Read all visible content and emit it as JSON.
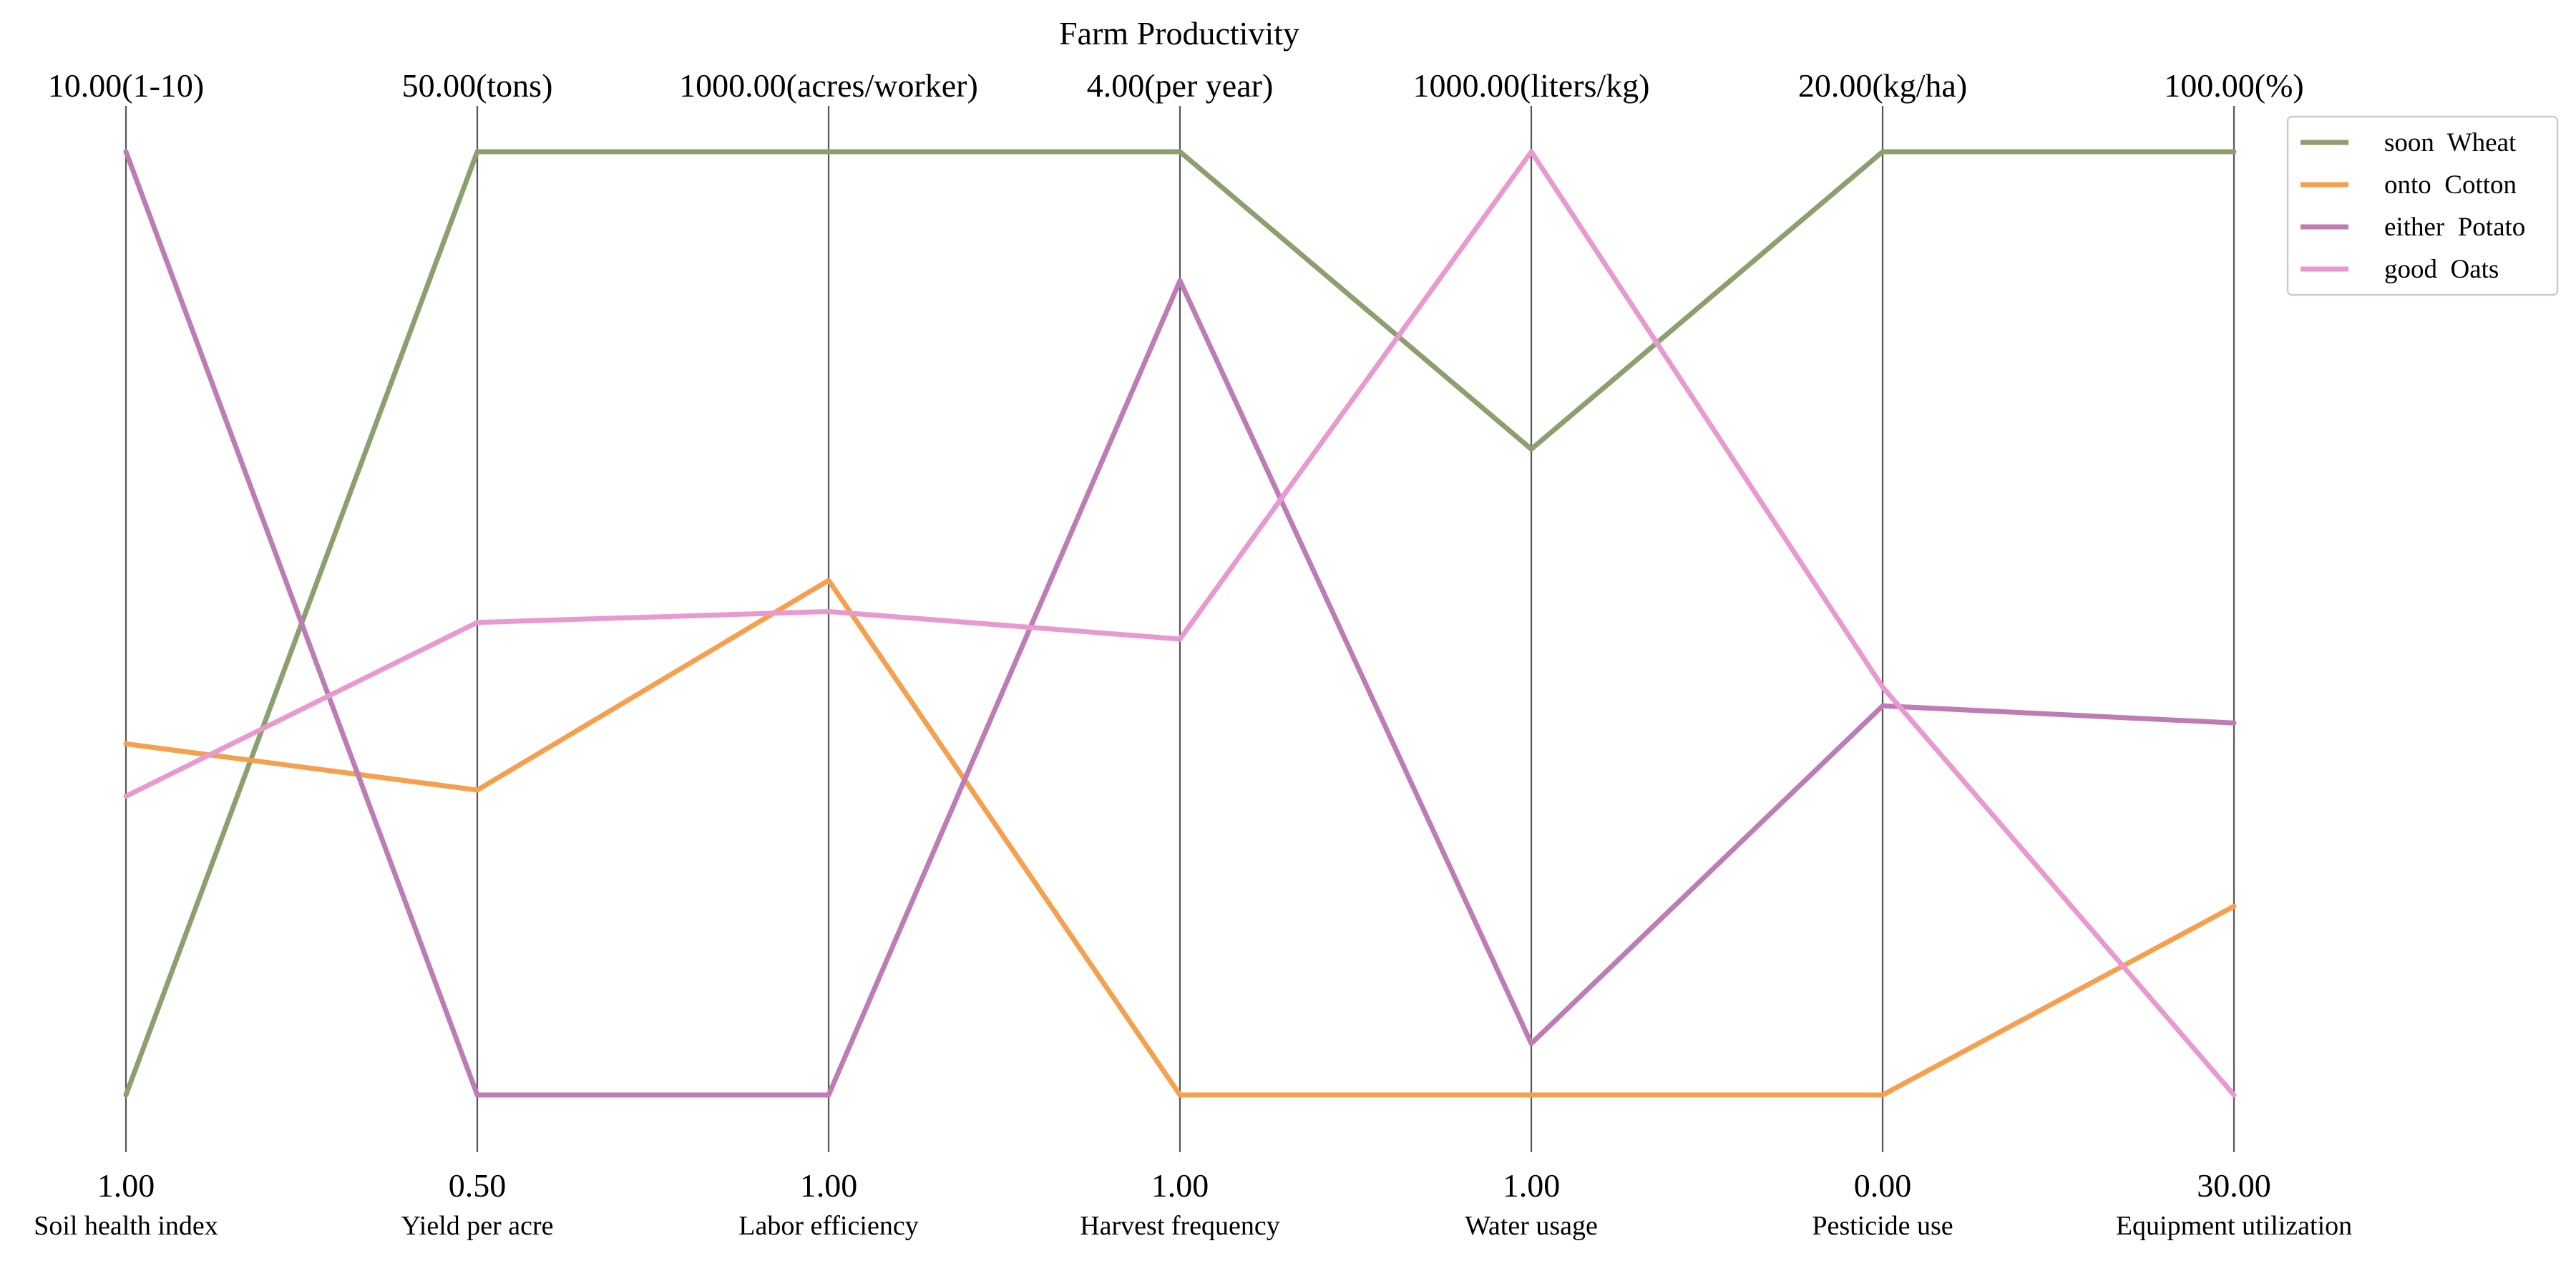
{
  "chart_data": {
    "type": "parallel_coordinates",
    "title": "Farm Productivity",
    "axes": [
      {
        "name": "Soil health index",
        "min_label": "1.00",
        "max_label": "10.00(1-10)",
        "min": 1.0,
        "max": 10.0
      },
      {
        "name": "Yield per acre",
        "min_label": "0.50",
        "max_label": "50.00(tons)",
        "min": 0.5,
        "max": 50.0
      },
      {
        "name": "Labor efficiency",
        "min_label": "1.00",
        "max_label": "1000.00(acres/worker)",
        "min": 1.0,
        "max": 1000.0
      },
      {
        "name": "Harvest frequency",
        "min_label": "1.00",
        "max_label": "4.00(per year)",
        "min": 1.0,
        "max": 4.0
      },
      {
        "name": "Water usage",
        "min_label": "1.00",
        "max_label": "1000.00(liters/kg)",
        "min": 1.0,
        "max": 1000.0
      },
      {
        "name": "Pesticide use",
        "min_label": "0.00",
        "max_label": "20.00(kg/ha)",
        "min": 0.0,
        "max": 20.0
      },
      {
        "name": "Equipment utilization",
        "min_label": "30.00",
        "max_label": "100.00(%)",
        "min": 30.0,
        "max": 100.0
      }
    ],
    "series": [
      {
        "name": "soon  Wheat",
        "color": "#8c9f6e",
        "values": [
          1.0,
          50.0,
          1000.0,
          4.0,
          685.0,
          20.0,
          100.0
        ]
      },
      {
        "name": "onto  Cotton",
        "color": "#f5a04e",
        "values": [
          4.35,
          16.5,
          546.0,
          1.0,
          1.0,
          0.0,
          44.0
        ]
      },
      {
        "name": "either  Potato",
        "color": "#be7cb5",
        "values": [
          10.0,
          0.5,
          1.0,
          3.59,
          55.5,
          8.25,
          57.6
        ]
      },
      {
        "name": "good  Oats",
        "color": "#e89ad0",
        "values": [
          3.85,
          25.3,
          513.0,
          2.45,
          1000.0,
          8.65,
          30.0
        ]
      }
    ],
    "legend_position": "top-right",
    "grid": false
  }
}
